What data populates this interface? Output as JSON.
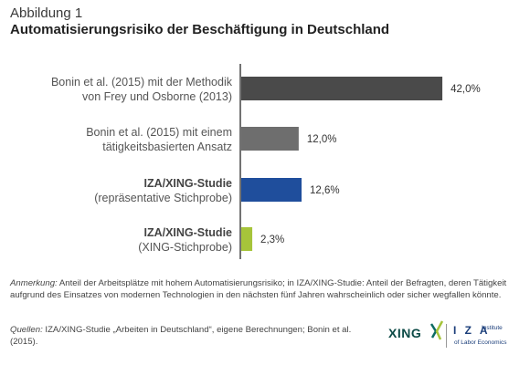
{
  "figure_label": "Abbildung 1",
  "chart_data": {
    "type": "bar",
    "orientation": "horizontal",
    "title": "Automatisierungsrisiko der Beschäftigung in Deutschland",
    "categories": [
      {
        "lines": [
          "Bonin et al. (2015) mit der Methodik",
          "von Frey und Osborne (2013)"
        ],
        "bold_first": false
      },
      {
        "lines": [
          "Bonin et al. (2015) mit einem",
          "tätigkeitsbasierten Ansatz"
        ],
        "bold_first": false
      },
      {
        "lines": [
          "IZA/XING-Studie",
          "(repräsentative Stichprobe)"
        ],
        "bold_first": true
      },
      {
        "lines": [
          "IZA/XING-Studie",
          "(XING-Stichprobe)"
        ],
        "bold_first": true
      }
    ],
    "values": [
      42.0,
      12.0,
      12.6,
      2.3
    ],
    "value_labels": [
      "42,0%",
      "12,0%",
      "12,6%",
      "2,3%"
    ],
    "colors": [
      "#4a4a4a",
      "#6e6e6e",
      "#1f4e9c",
      "#a6c43a"
    ],
    "xlim": [
      0,
      50
    ],
    "grid": false,
    "legend": "none"
  },
  "note": {
    "label": "Anmerkung:",
    "text": " Anteil der Arbeitsplätze mit hohem Automatisierungsrisiko; in IZA/XING-Studie: Anteil der Befragten, deren Tätigkeit aufgrund des Einsatzes von modernen Technologien in den nächsten fünf Jahren wahrscheinlich oder sicher wegfallen könnte."
  },
  "sources": {
    "label": "Quellen:",
    "text": " IZA/XING-Studie „Arbeiten in Deutschland“, eigene Berechnungen; Bonin et al. (2015)."
  },
  "logos": {
    "xing": "XING",
    "iza": "I Z A",
    "iza_sub1": "Institute",
    "iza_sub2": "of Labor Economics"
  }
}
